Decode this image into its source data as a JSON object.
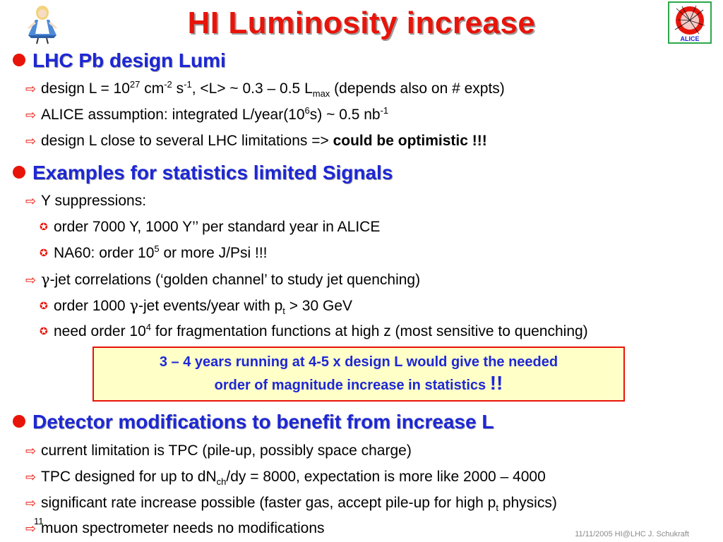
{
  "slide": {
    "title": "HI Luminosity increase",
    "sections": [
      {
        "heading": "LHC Pb design Lumi",
        "items": [
          {
            "pre": "design L = 10",
            "sup1": "27",
            "mid1": " cm",
            "sup2": "-2",
            "mid2": " s",
            "sup3": "-1",
            "mid3": ", <L> ~ 0.3 – 0.5 L",
            "sub1": "max",
            "post": " (depends also on # expts)"
          },
          {
            "pre": "ALICE assumption: integrated L/year(10",
            "sup1": "6",
            "mid1": "s) ~ 0.5 nb",
            "sup2": "-1"
          },
          {
            "pre": "design L close to several LHC limitations => ",
            "bold": "could be optimistic !!!"
          }
        ]
      },
      {
        "heading": "Examples for statistics limited Signals",
        "items": [
          {
            "text": "Y suppressions:"
          },
          {
            "text": "order 7000 Y, 1000 Y’’ per standard year in ALICE"
          },
          {
            "pre": "NA60: order 10",
            "sup1": "5",
            "post": " or more J/Psi !!!"
          },
          {
            "gamma": "γ",
            "text": "-jet correlations (‘golden channel’ to study jet quenching)"
          },
          {
            "pre": "order 1000 ",
            "gamma": "γ",
            "mid": "-jet events/year with p",
            "sub1": "t",
            "post": " > 30 GeV"
          },
          {
            "pre": "need order 10",
            "sup1": "4",
            "post": " for fragmentation functions at high z (most sensitive to quenching)"
          }
        ]
      },
      {
        "heading": "Detector modifications to benefit from increase L",
        "items": [
          {
            "text": "current limitation is TPC (pile-up, possibly space charge)"
          },
          {
            "pre": "TPC designed for up to dN",
            "sub1": "ch",
            "post": "/dy = 8000, expectation is more like 2000 – 4000"
          },
          {
            "pre": "significant rate increase possible (faster gas, accept pile-up for high p",
            "sub1": "t",
            "post": " physics)"
          },
          {
            "text": "muon spectrometer needs no modifications"
          }
        ]
      }
    ],
    "callout": {
      "line1": "3 – 4 years running at 4-5 x design L would give the needed",
      "line2": "order of magnitude increase in statistics ",
      "emph": "!!"
    },
    "footer": "11/11/2005 HI@LHC J. Schukraft",
    "page_number": "11"
  },
  "logos": {
    "left": "alice-wonderland-logo",
    "right": "alice-experiment-logo",
    "right_text": "ALICE"
  },
  "colors": {
    "title": "#e8140a",
    "heading": "#1d27d6",
    "bullet": "#e8140a",
    "callout_bg": "#ffffc8"
  }
}
